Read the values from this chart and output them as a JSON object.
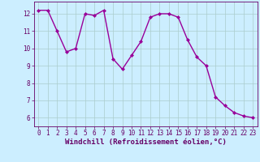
{
  "x": [
    0,
    1,
    2,
    3,
    4,
    5,
    6,
    7,
    8,
    9,
    10,
    11,
    12,
    13,
    14,
    15,
    16,
    17,
    18,
    19,
    20,
    21,
    22,
    23
  ],
  "y": [
    12.2,
    12.2,
    11.0,
    9.8,
    10.0,
    12.0,
    11.9,
    12.2,
    9.4,
    8.8,
    9.6,
    10.4,
    11.8,
    12.0,
    12.0,
    11.8,
    10.5,
    9.5,
    9.0,
    7.2,
    6.7,
    6.3,
    6.1,
    6.0
  ],
  "line_color": "#990099",
  "marker": "D",
  "marker_size": 2.0,
  "line_width": 1.0,
  "bg_color": "#cceeff",
  "grid_color": "#aacccc",
  "xlabel": "Windchill (Refroidissement éolien,°C)",
  "ylabel": "",
  "ylim": [
    5.5,
    12.7
  ],
  "xlim": [
    -0.5,
    23.5
  ],
  "yticks": [
    6,
    7,
    8,
    9,
    10,
    11,
    12
  ],
  "xticks": [
    0,
    1,
    2,
    3,
    4,
    5,
    6,
    7,
    8,
    9,
    10,
    11,
    12,
    13,
    14,
    15,
    16,
    17,
    18,
    19,
    20,
    21,
    22,
    23
  ],
  "tick_fontsize": 5.5,
  "xlabel_fontsize": 6.5,
  "axis_color": "#660066"
}
